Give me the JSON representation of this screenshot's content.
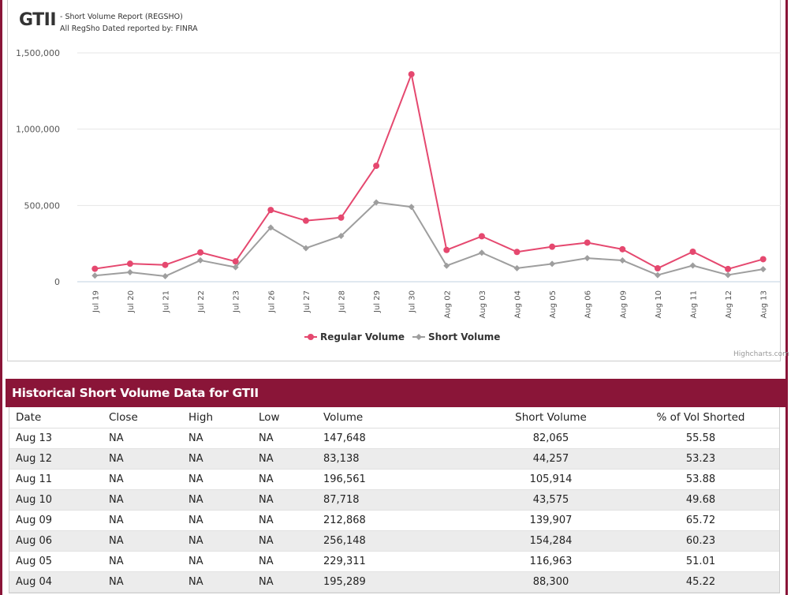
{
  "header": {
    "ticker": "GTII",
    "subtitle_1": "- Short Volume Report  (REGSHO)",
    "subtitle_2": "All RegSho Dated reported by: FINRA",
    "credits": "Highcharts.com"
  },
  "colors": {
    "regular": "#e5486f",
    "short": "#9e9e9e",
    "brand": "#8a1538"
  },
  "chart_data": {
    "type": "line",
    "title": "",
    "xlabel": "",
    "ylabel": "",
    "categories": [
      "Jul 19",
      "Jul 20",
      "Jul 21",
      "Jul 22",
      "Jul 23",
      "Jul 26",
      "Jul 27",
      "Jul 28",
      "Jul 29",
      "Jul 30",
      "Aug 02",
      "Aug 03",
      "Aug 04",
      "Aug 05",
      "Aug 06",
      "Aug 09",
      "Aug 10",
      "Aug 11",
      "Aug 12",
      "Aug 13"
    ],
    "ylim": [
      0,
      1500000
    ],
    "yticks": [
      0,
      500000,
      1000000,
      1500000
    ],
    "ytick_labels": [
      "0",
      "500,000",
      "1,000,000",
      "1,500,000"
    ],
    "legend_position": "bottom-center",
    "series": [
      {
        "name": "Regular Volume",
        "values": [
          85000,
          118000,
          110000,
          192000,
          133000,
          470000,
          400000,
          420000,
          760000,
          1360000,
          208000,
          298000,
          195289,
          229311,
          256148,
          212868,
          87718,
          196561,
          83138,
          147648
        ]
      },
      {
        "name": "Short Volume",
        "values": [
          40000,
          62000,
          36000,
          140000,
          95000,
          355000,
          220000,
          300000,
          520000,
          490000,
          105000,
          190000,
          88300,
          116963,
          154284,
          139907,
          43575,
          105914,
          44257,
          82065
        ]
      }
    ]
  },
  "table": {
    "title": "Historical Short Volume Data for GTII",
    "columns": [
      "Date",
      "Close",
      "High",
      "Low",
      "Volume",
      "Short Volume",
      "% of Vol Shorted"
    ],
    "rows": [
      [
        "Aug 13",
        "NA",
        "NA",
        "NA",
        "147,648",
        "82,065",
        "55.58"
      ],
      [
        "Aug 12",
        "NA",
        "NA",
        "NA",
        "83,138",
        "44,257",
        "53.23"
      ],
      [
        "Aug 11",
        "NA",
        "NA",
        "NA",
        "196,561",
        "105,914",
        "53.88"
      ],
      [
        "Aug 10",
        "NA",
        "NA",
        "NA",
        "87,718",
        "43,575",
        "49.68"
      ],
      [
        "Aug 09",
        "NA",
        "NA",
        "NA",
        "212,868",
        "139,907",
        "65.72"
      ],
      [
        "Aug 06",
        "NA",
        "NA",
        "NA",
        "256,148",
        "154,284",
        "60.23"
      ],
      [
        "Aug 05",
        "NA",
        "NA",
        "NA",
        "229,311",
        "116,963",
        "51.01"
      ],
      [
        "Aug 04",
        "NA",
        "NA",
        "NA",
        "195,289",
        "88,300",
        "45.22"
      ]
    ]
  }
}
